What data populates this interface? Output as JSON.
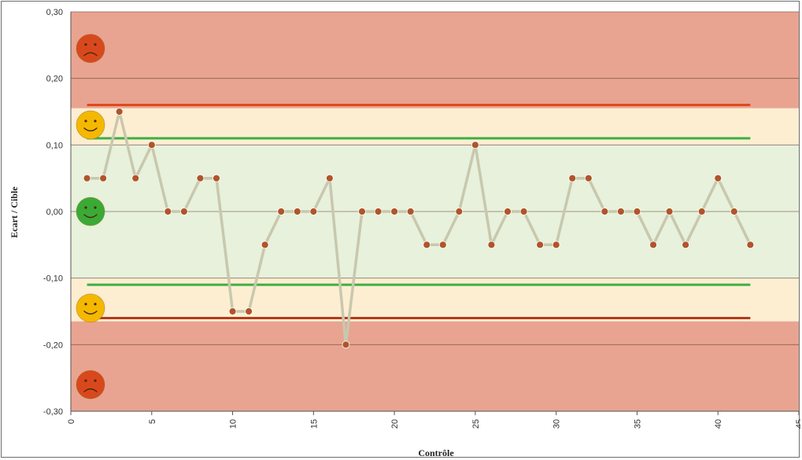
{
  "chart_data": {
    "type": "line",
    "title": "",
    "xlabel": "Contrôle",
    "ylabel": "Ecart / Cible",
    "xlim": [
      0,
      45
    ],
    "ylim": [
      -0.3,
      0.3
    ],
    "x_ticks": [
      "0",
      "5",
      "10",
      "15",
      "20",
      "25",
      "30",
      "35",
      "40",
      "45"
    ],
    "y_ticks": [
      "0,30",
      "0,20",
      "0,10",
      "0,00",
      "-0,10",
      "-0,20",
      "-0,30"
    ],
    "grid": true,
    "series": [
      {
        "x": [
          1,
          2,
          3,
          4,
          5,
          6,
          7,
          8,
          9,
          10,
          11,
          12,
          13,
          14,
          15,
          16,
          17,
          18,
          19,
          20,
          21,
          22,
          23,
          24,
          25,
          26,
          27,
          28,
          29,
          30,
          31,
          32,
          33,
          34,
          35,
          36,
          37,
          38,
          39,
          40,
          41,
          42
        ],
        "values": [
          0.05,
          0.05,
          0.15,
          0.05,
          0.1,
          0.0,
          0.0,
          0.05,
          0.05,
          -0.15,
          -0.15,
          -0.05,
          0.0,
          0.0,
          0.0,
          0.05,
          -0.2,
          0.0,
          0.0,
          0.0,
          0.0,
          -0.05,
          -0.05,
          0.0,
          0.1,
          -0.05,
          0.0,
          0.0,
          -0.05,
          -0.05,
          0.05,
          0.05,
          0.0,
          0.0,
          0.0,
          -0.05,
          0.0,
          -0.05,
          0.0,
          0.05,
          0.0,
          -0.05
        ],
        "line_color": "#c8c8ad",
        "marker_color": "#b0552a"
      }
    ],
    "zones": [
      {
        "from": 0.155,
        "to": 0.3,
        "color": "#e8a490",
        "mood": "sad"
      },
      {
        "from": 0.1,
        "to": 0.155,
        "color": "#fdeed2",
        "mood": "neutral"
      },
      {
        "from": -0.1,
        "to": 0.1,
        "color": "#e7f1dc",
        "mood": "happy"
      },
      {
        "from": -0.165,
        "to": -0.1,
        "color": "#fdeed2",
        "mood": "neutral"
      },
      {
        "from": -0.3,
        "to": -0.165,
        "color": "#e8a490",
        "mood": "sad"
      }
    ],
    "control_limits": [
      {
        "y": 0.16,
        "color": "#e0481c"
      },
      {
        "y": 0.11,
        "color": "#3cb043"
      },
      {
        "y": -0.11,
        "color": "#3cb043"
      },
      {
        "y": -0.16,
        "color": "#b23a1c"
      }
    ],
    "smileys": [
      {
        "y": 0.245,
        "color": "#d9481c",
        "mood": "sad"
      },
      {
        "y": 0.13,
        "color": "#f5b800",
        "mood": "neutral"
      },
      {
        "y": 0.0,
        "color": "#3aaa35",
        "mood": "happy"
      },
      {
        "y": -0.145,
        "color": "#f5b800",
        "mood": "neutral"
      },
      {
        "y": -0.26,
        "color": "#d9481c",
        "mood": "sad"
      }
    ]
  }
}
